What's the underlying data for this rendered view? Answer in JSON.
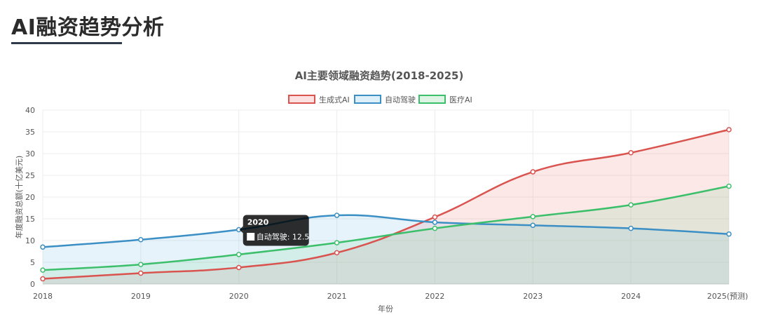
{
  "page": {
    "title": "AI融资趋势分析"
  },
  "chart_data": {
    "type": "area",
    "title": "AI主要领域融资趋势(2018-2025)",
    "xlabel": "年份",
    "ylabel": "年度融资总额(十亿美元)",
    "categories": [
      "2018",
      "2019",
      "2020",
      "2021",
      "2022",
      "2023",
      "2024",
      "2025(预测)"
    ],
    "ylim": [
      0,
      40
    ],
    "yticks": [
      0,
      5,
      10,
      15,
      20,
      25,
      30,
      35,
      40
    ],
    "grid": true,
    "legend_position": "top",
    "series": [
      {
        "name": "生成式AI",
        "values": [
          1.2,
          2.5,
          3.8,
          7.2,
          15.4,
          25.8,
          30.2,
          35.5
        ],
        "color": "#d9534f",
        "fill": "rgba(244,130,130,0.18)"
      },
      {
        "name": "自动驾驶",
        "values": [
          8.5,
          10.2,
          12.5,
          15.8,
          14.2,
          13.5,
          12.8,
          11.5
        ],
        "color": "#3b8fc4",
        "fill": "rgba(120,190,230,0.18)"
      },
      {
        "name": "医疗AI",
        "values": [
          3.2,
          4.5,
          6.8,
          9.5,
          12.8,
          15.5,
          18.2,
          22.5
        ],
        "color": "#3cbf6a",
        "fill": "rgba(120,210,150,0.18)"
      }
    ],
    "tooltip": {
      "category": "2020",
      "series": "自动驾驶",
      "title": "2020",
      "label": "自动驾驶: 12.5"
    }
  }
}
